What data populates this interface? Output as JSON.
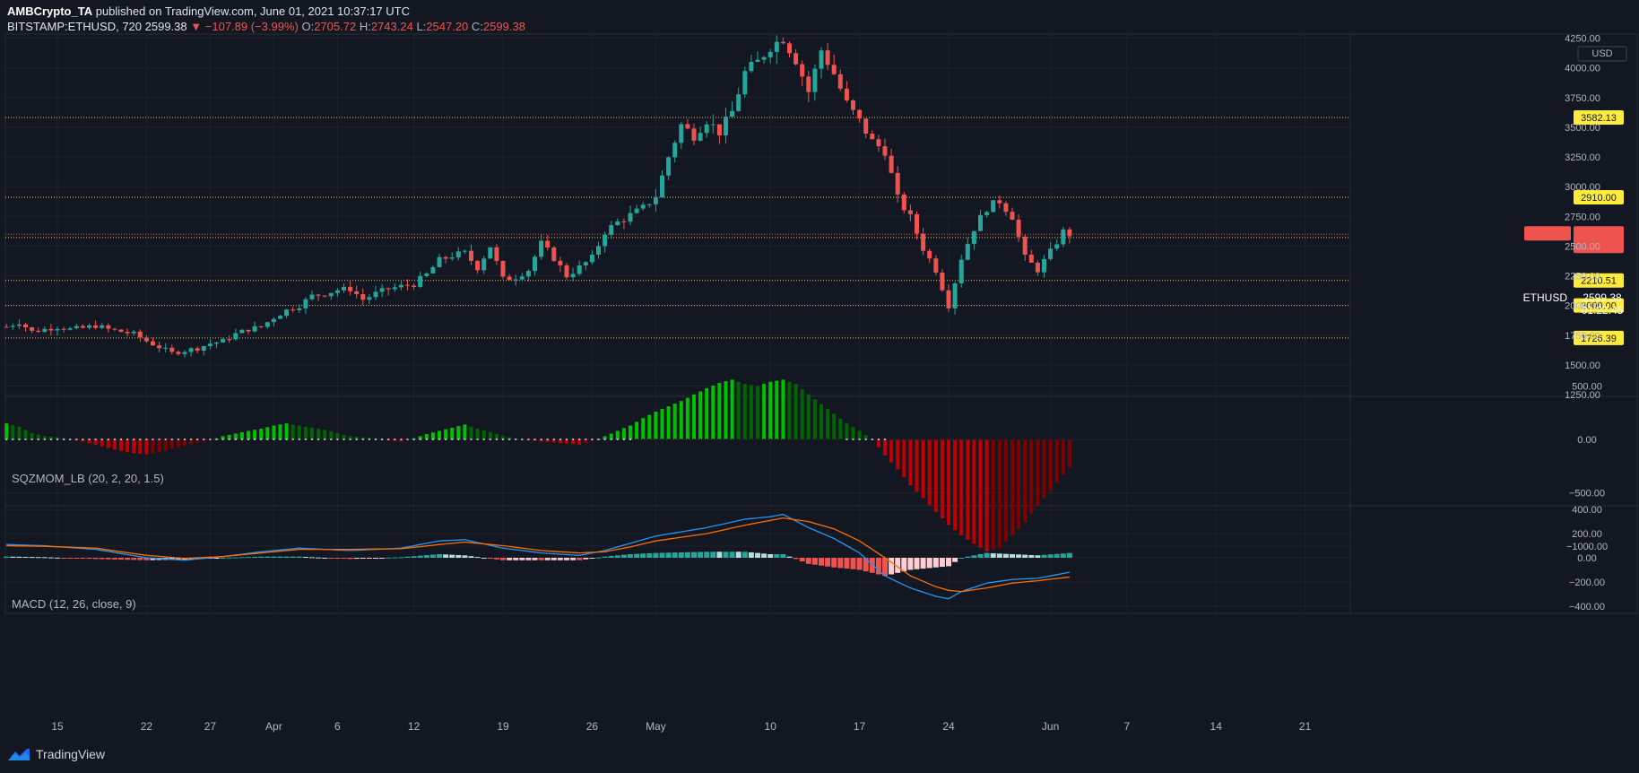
{
  "header": {
    "publisher": "AMBCrypto_TA",
    "published_text": "published on TradingView.com, June 01, 2021 10:37:17 UTC",
    "symbol": "BITSTAMP:ETHUSD, 720",
    "last": "2599.38",
    "change": "−107.89 (−3.99%)",
    "o_label": "O:",
    "o": "2705.72",
    "h_label": "H:",
    "h": "2743.24",
    "l_label": "L:",
    "l": "2547.20",
    "c_label": "C:",
    "c": "2599.38"
  },
  "colors": {
    "bg": "#131722",
    "grid": "#1e222d",
    "up": "#26a69a",
    "down": "#ef5350",
    "level": "#ffeb3b",
    "text": "#b2b5be",
    "macd": "#2196f3",
    "signal": "#ff6d00",
    "sqz_up_strong": "#00c000",
    "sqz_up_weak": "#006400",
    "sqz_dn_strong": "#c00000",
    "sqz_dn_weak": "#800000"
  },
  "chart_data": [
    {
      "type": "candlestick",
      "title": "BITSTAMP:ETHUSD, 720",
      "currency": "USD",
      "ylim": [
        1250,
        4600
      ],
      "y_ticks": [
        1250,
        1500,
        1750,
        2000,
        2250,
        2500,
        2750,
        3000,
        3250,
        3500,
        3750,
        4000,
        4250,
        4500
      ],
      "x_ticks": [
        {
          "day": 15,
          "label": "15"
        },
        {
          "day": 22,
          "label": "22"
        },
        {
          "day": 27,
          "label": "27"
        },
        {
          "day": 32,
          "label": "Apr"
        },
        {
          "day": 37,
          "label": "6"
        },
        {
          "day": 43,
          "label": "12"
        },
        {
          "day": 50,
          "label": "19"
        },
        {
          "day": 57,
          "label": "26"
        },
        {
          "day": 62,
          "label": "May"
        },
        {
          "day": 71,
          "label": "10"
        },
        {
          "day": 78,
          "label": "17"
        },
        {
          "day": 85,
          "label": "24"
        },
        {
          "day": 93,
          "label": "Jun"
        },
        {
          "day": 99,
          "label": "7"
        },
        {
          "day": 106,
          "label": "14"
        },
        {
          "day": 113,
          "label": "21"
        }
      ],
      "price_label": {
        "symbol": "ETHUSD",
        "value": "2599.38",
        "countdown": "01:22:45"
      },
      "levels": [
        {
          "value": 3582.13,
          "label": "3582.13"
        },
        {
          "value": 2910.0,
          "label": "2910.00"
        },
        {
          "value": 2572.11,
          "label": "2572.11"
        },
        {
          "value": 2210.51,
          "label": "2210.51"
        },
        {
          "value": 2000.0,
          "label": "2000.00"
        },
        {
          "value": 1726.39,
          "label": "1726.39"
        }
      ],
      "keypoints": [
        [
          11,
          1820
        ],
        [
          12,
          1860
        ],
        [
          13,
          1780
        ],
        [
          14,
          1800
        ],
        [
          15,
          1820
        ],
        [
          16,
          1800
        ],
        [
          17,
          1810
        ],
        [
          18,
          1830
        ],
        [
          19,
          1800
        ],
        [
          20,
          1780
        ],
        [
          21,
          1760
        ],
        [
          22,
          1700
        ],
        [
          23,
          1650
        ],
        [
          24,
          1600
        ],
        [
          25,
          1620
        ],
        [
          26,
          1640
        ],
        [
          27,
          1680
        ],
        [
          28,
          1700
        ],
        [
          29,
          1760
        ],
        [
          30,
          1800
        ],
        [
          31,
          1820
        ],
        [
          32,
          1900
        ],
        [
          33,
          1960
        ],
        [
          34,
          2000
        ],
        [
          35,
          2080
        ],
        [
          36,
          2100
        ],
        [
          37,
          2130
        ],
        [
          38,
          2140
        ],
        [
          39,
          2050
        ],
        [
          40,
          2100
        ],
        [
          41,
          2140
        ],
        [
          42,
          2160
        ],
        [
          43,
          2180
        ],
        [
          44,
          2260
        ],
        [
          45,
          2380
        ],
        [
          46,
          2420
        ],
        [
          47,
          2440
        ],
        [
          48,
          2320
        ],
        [
          49,
          2500
        ],
        [
          50,
          2220
        ],
        [
          51,
          2240
        ],
        [
          52,
          2300
        ],
        [
          53,
          2520
        ],
        [
          54,
          2400
        ],
        [
          55,
          2250
        ],
        [
          56,
          2320
        ],
        [
          57,
          2400
        ],
        [
          58,
          2620
        ],
        [
          59,
          2700
        ],
        [
          60,
          2760
        ],
        [
          61,
          2820
        ],
        [
          62,
          2920
        ],
        [
          63,
          3250
        ],
        [
          64,
          3520
        ],
        [
          65,
          3430
        ],
        [
          66,
          3560
        ],
        [
          67,
          3460
        ],
        [
          68,
          3630
        ],
        [
          69,
          3960
        ],
        [
          70,
          4050
        ],
        [
          71,
          4180
        ],
        [
          72,
          4250
        ],
        [
          73,
          4070
        ],
        [
          74,
          3800
        ],
        [
          75,
          4150
        ],
        [
          76,
          3950
        ],
        [
          77,
          3700
        ],
        [
          78,
          3550
        ],
        [
          79,
          3380
        ],
        [
          80,
          3300
        ],
        [
          81,
          2900
        ],
        [
          82,
          2740
        ],
        [
          83,
          2480
        ],
        [
          84,
          2300
        ],
        [
          85,
          2000
        ],
        [
          86,
          2400
        ],
        [
          87,
          2650
        ],
        [
          88,
          2820
        ],
        [
          89,
          2880
        ],
        [
          90,
          2750
        ],
        [
          91,
          2400
        ],
        [
          92,
          2300
        ],
        [
          93,
          2450
        ],
        [
          94,
          2620
        ],
        [
          94.5,
          2599.38
        ]
      ],
      "macd_series": {
        "macd": [
          [
            11,
            110
          ],
          [
            14,
            100
          ],
          [
            18,
            70
          ],
          [
            22,
            0
          ],
          [
            25,
            -20
          ],
          [
            28,
            10
          ],
          [
            31,
            50
          ],
          [
            34,
            80
          ],
          [
            38,
            60
          ],
          [
            42,
            80
          ],
          [
            45,
            140
          ],
          [
            47,
            150
          ],
          [
            50,
            80
          ],
          [
            53,
            40
          ],
          [
            56,
            20
          ],
          [
            58,
            60
          ],
          [
            60,
            120
          ],
          [
            62,
            180
          ],
          [
            66,
            250
          ],
          [
            69,
            320
          ],
          [
            71,
            340
          ],
          [
            72,
            360
          ],
          [
            74,
            250
          ],
          [
            76,
            160
          ],
          [
            78,
            40
          ],
          [
            80,
            -150
          ],
          [
            82,
            -250
          ],
          [
            84,
            -320
          ],
          [
            85,
            -340
          ],
          [
            86,
            -280
          ],
          [
            88,
            -210
          ],
          [
            90,
            -180
          ],
          [
            92,
            -170
          ],
          [
            94.5,
            -120
          ]
        ],
        "signal": [
          [
            11,
            100
          ],
          [
            14,
            95
          ],
          [
            18,
            80
          ],
          [
            22,
            20
          ],
          [
            25,
            -5
          ],
          [
            28,
            10
          ],
          [
            31,
            40
          ],
          [
            34,
            70
          ],
          [
            38,
            70
          ],
          [
            42,
            75
          ],
          [
            45,
            110
          ],
          [
            47,
            130
          ],
          [
            50,
            100
          ],
          [
            53,
            60
          ],
          [
            56,
            40
          ],
          [
            58,
            50
          ],
          [
            60,
            90
          ],
          [
            62,
            140
          ],
          [
            66,
            200
          ],
          [
            69,
            270
          ],
          [
            71,
            310
          ],
          [
            72,
            330
          ],
          [
            74,
            300
          ],
          [
            76,
            240
          ],
          [
            78,
            140
          ],
          [
            80,
            0
          ],
          [
            82,
            -150
          ],
          [
            84,
            -240
          ],
          [
            85,
            -270
          ],
          [
            86,
            -280
          ],
          [
            88,
            -250
          ],
          [
            90,
            -210
          ],
          [
            92,
            -190
          ],
          [
            94.5,
            -160
          ]
        ]
      }
    },
    {
      "type": "histogram",
      "title": "SQZMOM_LB (20, 2, 20, 1.5)",
      "ylim": [
        -1150,
        650
      ],
      "y_ticks": [
        500,
        0,
        -500,
        -1000
      ],
      "y_labels": [
        "500.00",
        "0.00",
        "−500.00",
        "−1000.00"
      ],
      "values": [
        [
          11,
          150
        ],
        [
          12,
          120
        ],
        [
          13,
          60
        ],
        [
          14,
          30
        ],
        [
          15,
          20
        ],
        [
          17,
          -20
        ],
        [
          18,
          -50
        ],
        [
          19,
          -80
        ],
        [
          20,
          -110
        ],
        [
          21,
          -130
        ],
        [
          22,
          -140
        ],
        [
          23,
          -120
        ],
        [
          24,
          -90
        ],
        [
          25,
          -60
        ],
        [
          26,
          -30
        ],
        [
          27,
          -10
        ],
        [
          28,
          30
        ],
        [
          30,
          80
        ],
        [
          31,
          100
        ],
        [
          32,
          130
        ],
        [
          33,
          150
        ],
        [
          34,
          130
        ],
        [
          35,
          110
        ],
        [
          36,
          90
        ],
        [
          37,
          60
        ],
        [
          38,
          30
        ],
        [
          39,
          20
        ],
        [
          40,
          10
        ],
        [
          41,
          -10
        ],
        [
          42,
          -20
        ],
        [
          43,
          10
        ],
        [
          44,
          50
        ],
        [
          45,
          80
        ],
        [
          46,
          110
        ],
        [
          47,
          140
        ],
        [
          48,
          100
        ],
        [
          49,
          70
        ],
        [
          50,
          30
        ],
        [
          51,
          10
        ],
        [
          52,
          -10
        ],
        [
          53,
          -20
        ],
        [
          54,
          -30
        ],
        [
          55,
          -40
        ],
        [
          56,
          -50
        ],
        [
          57,
          -20
        ],
        [
          58,
          30
        ],
        [
          59,
          80
        ],
        [
          60,
          130
        ],
        [
          61,
          200
        ],
        [
          62,
          260
        ],
        [
          63,
          310
        ],
        [
          64,
          360
        ],
        [
          65,
          420
        ],
        [
          66,
          480
        ],
        [
          67,
          530
        ],
        [
          68,
          560
        ],
        [
          69,
          520
        ],
        [
          70,
          500
        ],
        [
          71,
          540
        ],
        [
          72,
          560
        ],
        [
          73,
          520
        ],
        [
          74,
          420
        ],
        [
          75,
          330
        ],
        [
          76,
          240
        ],
        [
          77,
          150
        ],
        [
          78,
          80
        ],
        [
          79,
          0
        ],
        [
          80,
          -150
        ],
        [
          81,
          -280
        ],
        [
          82,
          -430
        ],
        [
          83,
          -550
        ],
        [
          84,
          -680
        ],
        [
          85,
          -800
        ],
        [
          86,
          -900
        ],
        [
          87,
          -980
        ],
        [
          88,
          -1050
        ],
        [
          89,
          -1020
        ],
        [
          90,
          -900
        ],
        [
          91,
          -780
        ],
        [
          92,
          -620
        ],
        [
          93,
          -480
        ],
        [
          94,
          -330
        ],
        [
          95,
          -200
        ],
        [
          96,
          -80
        ],
        [
          97,
          20
        ],
        [
          98,
          80
        ],
        [
          99,
          140
        ],
        [
          100,
          200
        ],
        [
          101,
          260
        ],
        [
          102,
          310
        ]
      ]
    },
    {
      "type": "line",
      "title": "MACD (12, 26, close, 9)",
      "ylim": [
        -430,
        420
      ],
      "y_ticks": [
        400,
        200,
        0,
        -200,
        -400
      ],
      "y_labels": [
        "400.00",
        "200.00",
        "0.00",
        "−200.00",
        "−400.00"
      ]
    }
  ],
  "footer": {
    "brand": "TradingView"
  }
}
